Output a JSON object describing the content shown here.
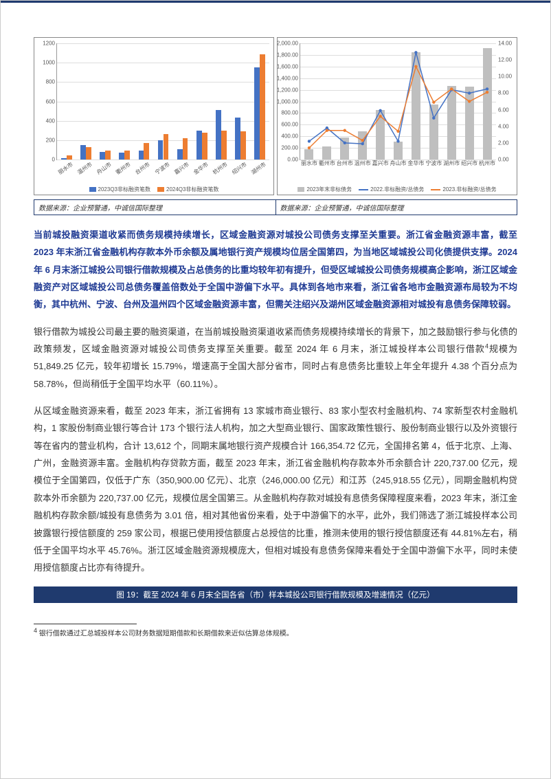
{
  "colors": {
    "accent_navy": "#1f3a6e",
    "accent_blue_text": "#1f3a93",
    "gold": "#c19b5a",
    "series_blue": "#4472c4",
    "series_orange": "#ed7d31",
    "series_grey": "#bfbfbf",
    "grid": "#dddddd"
  },
  "chart_left": {
    "type": "bar",
    "ylim": [
      0,
      1200
    ],
    "ytick_step": 200,
    "yticks": [
      0,
      200,
      400,
      600,
      800,
      1000,
      1200
    ],
    "categories": [
      "丽水市",
      "温州市",
      "舟山市",
      "衢州市",
      "台州市",
      "宁波市",
      "嘉兴市",
      "金华市",
      "杭州市",
      "绍兴市",
      "湖州市"
    ],
    "series": [
      {
        "name": "2023Q3非标融资笔数",
        "color": "#4472c4",
        "values": [
          15,
          150,
          80,
          70,
          90,
          200,
          110,
          300,
          510,
          430,
          950
        ]
      },
      {
        "name": "2024Q3非标融资笔数",
        "color": "#ed7d31",
        "values": [
          40,
          130,
          95,
          95,
          170,
          260,
          220,
          280,
          300,
          290,
          1090
        ]
      }
    ],
    "bar_group_width": 0.6,
    "label_fontsize": 8,
    "grid_color": "#dddddd",
    "background_color": "#ffffff"
  },
  "chart_right": {
    "type": "combo",
    "ylim_left": [
      0,
      2000
    ],
    "ytick_step_left": 200,
    "ylim_right": [
      0,
      14
    ],
    "ytick_step_right": 2,
    "yticks_left": [
      "0.00",
      "200.00",
      "400.00",
      "600.00",
      "800.00",
      "1,000.00",
      "1,200.00",
      "1,400.00",
      "1,600.00",
      "1,800.00",
      "2,000.00"
    ],
    "yticks_right": [
      "0.00",
      "2.00",
      "4.00",
      "6.00",
      "8.00",
      "10.00",
      "12.00",
      "14.00"
    ],
    "categories": [
      "丽水市",
      "衢州市",
      "台州市",
      "温州市",
      "嘉兴市",
      "舟山市",
      "金华市",
      "宁波市",
      "湖州市",
      "绍兴市",
      "杭州市"
    ],
    "bars": {
      "name": "2023年末非标债务",
      "color": "#bfbfbf",
      "axis": "left",
      "values": [
        180,
        220,
        380,
        490,
        850,
        310,
        1850,
        950,
        1270,
        1250,
        1920
      ]
    },
    "lines": [
      {
        "name": "2022.非标融资/总债务",
        "color": "#4472c4",
        "axis": "right",
        "values": [
          2.2,
          3.8,
          2.0,
          1.9,
          5.9,
          2.2,
          12.9,
          5.0,
          8.4,
          8.0,
          8.5
        ]
      },
      {
        "name": "2023.非标融资/总债务",
        "color": "#ed7d31",
        "axis": "right",
        "values": [
          1.4,
          3.5,
          3.5,
          2.3,
          5.2,
          3.4,
          11.2,
          6.9,
          8.5,
          7.0,
          8.1
        ]
      }
    ],
    "label_fontsize": 8,
    "grid_color": "#dddddd",
    "background_color": "#ffffff",
    "line_width": 1.5,
    "marker_size": 3
  },
  "source_left": "数据来源：企业预警通，中诚信国际整理",
  "source_right": "数据来源：企业预警通，中诚信国际整理",
  "summary": "当前城投融资渠道收紧而债务规模持续增长，区域金融资源对城投公司债务支撑至关重要。浙江省金融资源丰富，截至 2023 年末浙江省金融机构存款本外币余额及属地银行资产规模均位居全国第四，为当地区域城投公司化债提供支撑。2024 年 6 月末浙江城投公司银行借款规模及占总债务的比重均较年初有提升，但受区域城投公司债务规模高企影响，浙江区域金融资产对区域城投公司总债务覆盖倍数处于全国中游偏下水平。具体到各地市来看，浙江省各地市金融资源布局较为不均衡，其中杭州、宁波、台州及温州四个区域金融资源丰富，但需关注绍兴及湖州区域金融资源相对城投有息债务保障较弱。",
  "para1_a": "银行借款为城投公司最主要的融资渠道，在当前城投融资渠道收紧而债务规模持续增长的背景下，加之鼓励银行参与化债的政策频发，区域金融资源对城投公司债务支撑至关重要。截至 2024 年 6 月末，浙江城投样本公司银行借款",
  "para1_sup": "4",
  "para1_b": "规模为 51,849.25 亿元，较年初增长 15.79%，增速高于全国大部分省市，同时占有息债务比重较上年全年提升 4.38 个百分点为 58.78%，但尚稍低于全国平均水平（60.11%）。",
  "para2": "从区域金融资源来看，截至 2023 年末，浙江省拥有 13 家城市商业银行、83 家小型农村金融机构、74 家新型农村金融机构，1 家股份制商业银行等合计 173 个银行法人机构，加之大型商业银行、国家政策性银行、股份制商业银行以及外资银行等在省内的营业机构，合计 13,612 个，同期末属地银行资产规模合计 166,354.72 亿元，全国排名第 4，低于北京、上海、广州，金融资源丰富。金融机构存贷款方面，截至 2023 年末，浙江省金融机构存款本外币余额合计 220,737.00 亿元，规模位于全国第四，仅低于广东（350,900.00 亿元）、北京（246,000.00 亿元）和江苏（245,918.55 亿元），同期金融机构贷款本外币余额为 220,737.00 亿元，规模位居全国第三。从金融机构存款对城投有息债务保障程度来看，2023 年末，浙江金融机构存款余额/城投有息债务为 3.01 倍，相对其他省份来看，处于中游偏下的水平，此外，我们筛选了浙江城投样本公司披露银行授信额度的 259 家公司，根据已使用授信额度占总授信的比重，推测未使用的银行授信额度还有 44.81%左右，稍低于全国平均水平 45.76%。浙江区域金融资源规模庞大，但相对城投有息债务保障来看处于全国中游偏下水平，同时未使用授信额度占比亦有待提升。",
  "fig_caption": "图 19：截至 2024 年 6 月末全国各省（市）样本城投公司银行借款规模及增速情况（亿元）",
  "footnote_num": "4",
  "footnote_text": " 银行借款通过汇总城投样本公司财务数据短期借款和长期借款来近似估算总体规模。"
}
